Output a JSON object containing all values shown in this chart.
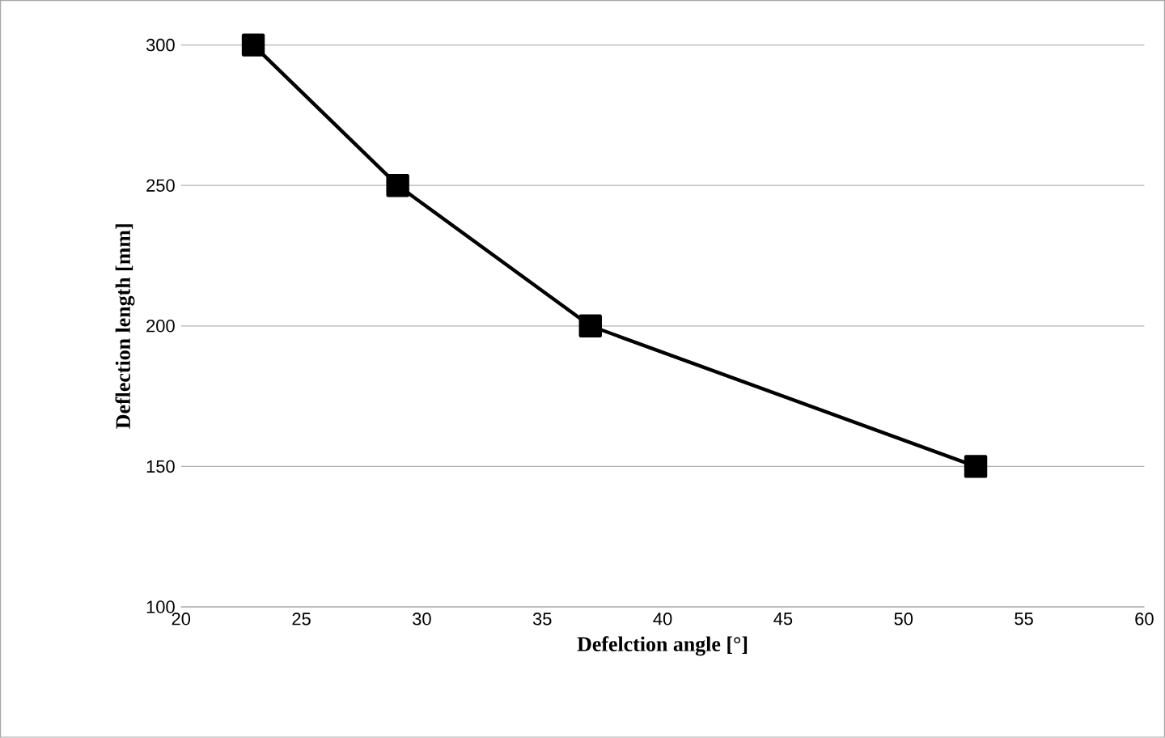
{
  "chart_data": {
    "type": "line",
    "xlabel": "Defelction angle [°]",
    "ylabel": "Deflection length [mm]",
    "x": [
      23,
      29,
      37,
      53
    ],
    "series": [
      {
        "color": "#000000",
        "values": [
          300,
          250,
          200,
          150
        ]
      }
    ],
    "xlim": [
      20,
      60
    ],
    "xticks": [
      20,
      25,
      30,
      35,
      40,
      45,
      50,
      55,
      60
    ],
    "ylim": [
      100,
      300
    ],
    "yticks": [
      100,
      150,
      200,
      250,
      300
    ],
    "grid": "y",
    "marker": "square",
    "line_style": "solid"
  }
}
